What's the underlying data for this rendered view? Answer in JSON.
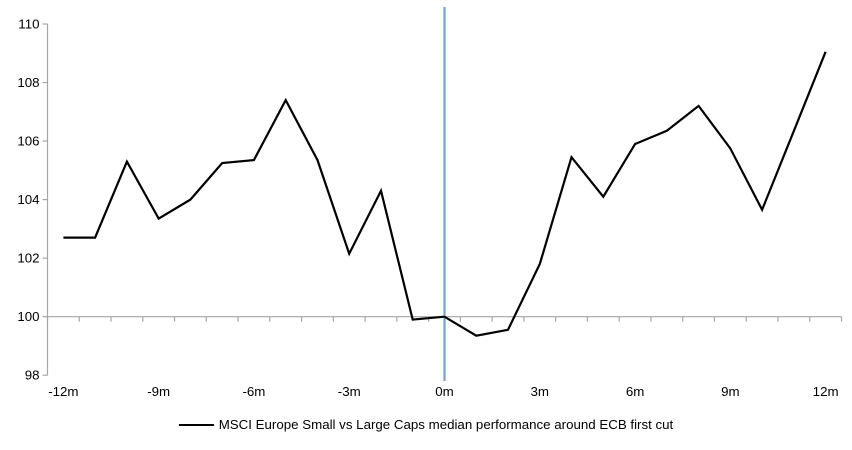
{
  "chart_data": {
    "type": "line",
    "title": "",
    "xlabel": "",
    "ylabel": "",
    "x_unit": "months around ECB first cut",
    "x": [
      -12,
      -11,
      -10,
      -9,
      -8,
      -7,
      -6,
      -5,
      -4,
      -3,
      -2,
      -1,
      0,
      1,
      2,
      3,
      4,
      5,
      6,
      7,
      8,
      9,
      10,
      11,
      12
    ],
    "series": [
      {
        "name": "MSCI Europe Small vs Large Caps median performance around ECB first cut",
        "color": "#000000",
        "values": [
          102.7,
          102.7,
          105.3,
          103.35,
          104.0,
          105.25,
          105.35,
          107.4,
          105.35,
          102.15,
          104.3,
          99.9,
          100.0,
          99.35,
          99.55,
          101.8,
          105.45,
          104.1,
          105.9,
          106.35,
          107.2,
          105.75,
          103.65,
          106.35,
          109.05
        ]
      }
    ],
    "ylim": [
      98,
      110
    ],
    "yticks": [
      110,
      108,
      106,
      104,
      102,
      100,
      98
    ],
    "ytick_labels": [
      "110",
      "108",
      "106",
      "104",
      "102",
      "100",
      "98"
    ],
    "xticks": [
      -12,
      -9,
      -6,
      -3,
      0,
      3,
      6,
      9,
      12
    ],
    "xtick_labels": [
      "-12m",
      "-9m",
      "-6m",
      "-3m",
      "0m",
      "3m",
      "6m",
      "9m",
      "12m"
    ],
    "axis_cross_value": 100,
    "event_line": {
      "x": 0,
      "color": "#79A3CC"
    },
    "axis_color": "#A6A6A6",
    "tick_label_color": "#000000",
    "grid": false,
    "legend_position": "bottom"
  }
}
